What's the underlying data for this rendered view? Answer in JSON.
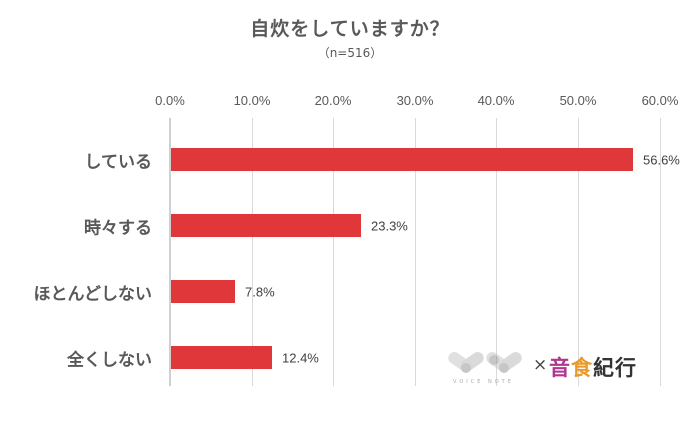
{
  "chart_data": {
    "type": "bar",
    "orientation": "horizontal",
    "title": "自炊をしていますか？",
    "subtitle": "（n=516）",
    "categories": [
      "している",
      "時々する",
      "ほとんどしない",
      "全くしない"
    ],
    "values": [
      56.6,
      23.3,
      7.8,
      12.4
    ],
    "value_labels": [
      "56.6%",
      "23.3%",
      "7.8%",
      "12.4%"
    ],
    "xlabel": "",
    "ylabel": "",
    "xlim": [
      0,
      60
    ],
    "x_ticks": [
      "0.0%",
      "10.0%",
      "20.0%",
      "30.0%",
      "40.0%",
      "50.0%",
      "60.0%"
    ],
    "grid": true,
    "axis_position": "top",
    "legend": null,
    "bar_color": "#e0373b"
  },
  "logo": {
    "brand_small": "VOICE NOTE",
    "cross": "×",
    "partner": [
      "音",
      "食",
      "紀行"
    ],
    "partner_colors": [
      "#b0368c",
      "#e89a2a",
      "#333333"
    ]
  }
}
